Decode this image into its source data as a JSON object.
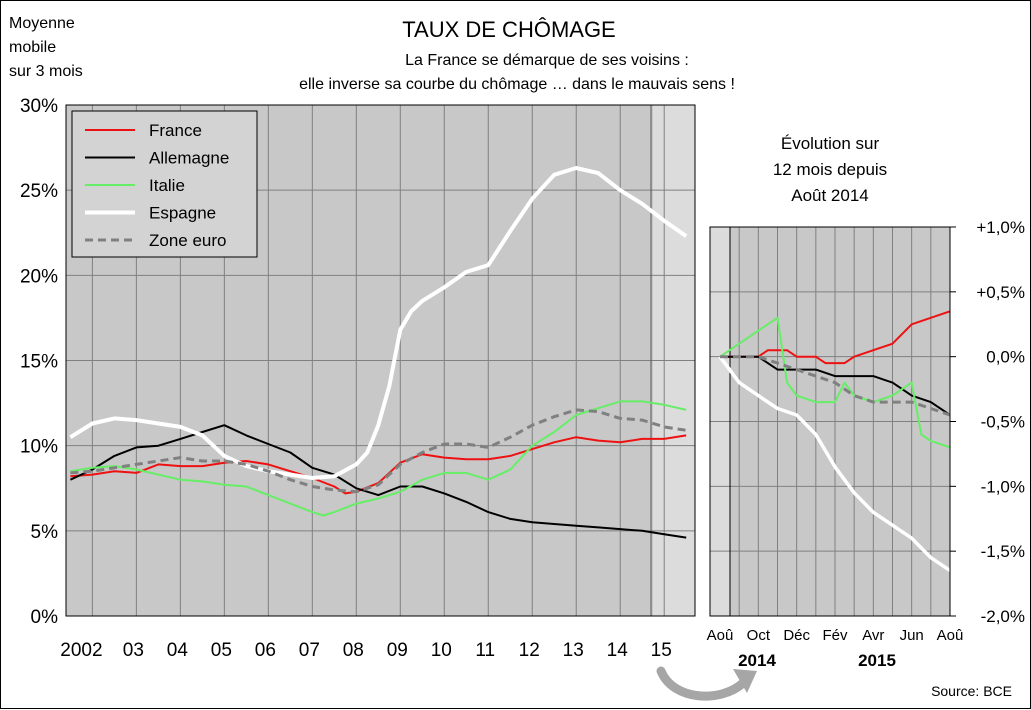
{
  "header": {
    "left_note": [
      "Moyenne",
      "mobile",
      "sur 3 mois"
    ],
    "title": "TAUX DE CHÔMAGE",
    "subtitle": [
      "La France se démarque de ses voisins :",
      "elle inverse sa courbe du chômage … dans le mauvais sens !"
    ]
  },
  "source": "Source: BCE",
  "colors": {
    "France": "#ee1111",
    "Allemagne": "#000000",
    "Italie": "#66ee66",
    "Espagne": "#ffffff",
    "Zone euro": "#808080",
    "plot_bg": "#c8c8c8",
    "plot_bg_highlight": "#dcdcdc",
    "grid": "#808080"
  },
  "chart_data": [
    {
      "type": "line",
      "y_unit": "percent",
      "ylim": [
        0,
        30
      ],
      "y_ticks": [
        "0%",
        "5%",
        "10%",
        "15%",
        "20%",
        "25%",
        "30%"
      ],
      "x_range": [
        2001.4,
        2015.7
      ],
      "x_ticks": [
        "2002",
        "03",
        "04",
        "05",
        "06",
        "07",
        "08",
        "09",
        "10",
        "11",
        "12",
        "13",
        "14",
        "15"
      ],
      "grid": true,
      "legend_position": "top-left",
      "series": [
        {
          "name": "France",
          "color": "#ee1111",
          "dash": false,
          "points": [
            [
              2001.5,
              8.2
            ],
            [
              2002,
              8.3
            ],
            [
              2002.5,
              8.5
            ],
            [
              2003,
              8.4
            ],
            [
              2003.5,
              8.9
            ],
            [
              2004,
              8.8
            ],
            [
              2004.5,
              8.8
            ],
            [
              2005,
              9.0
            ],
            [
              2005.5,
              9.1
            ],
            [
              2006,
              8.9
            ],
            [
              2006.5,
              8.5
            ],
            [
              2007,
              8.1
            ],
            [
              2007.5,
              7.6
            ],
            [
              2007.75,
              7.2
            ],
            [
              2008,
              7.3
            ],
            [
              2008.5,
              7.8
            ],
            [
              2009,
              9.0
            ],
            [
              2009.5,
              9.5
            ],
            [
              2010,
              9.3
            ],
            [
              2010.5,
              9.2
            ],
            [
              2011,
              9.2
            ],
            [
              2011.5,
              9.4
            ],
            [
              2012,
              9.8
            ],
            [
              2012.5,
              10.2
            ],
            [
              2013,
              10.5
            ],
            [
              2013.5,
              10.3
            ],
            [
              2014,
              10.2
            ],
            [
              2014.5,
              10.4
            ],
            [
              2015,
              10.4
            ],
            [
              2015.5,
              10.6
            ]
          ]
        },
        {
          "name": "Allemagne",
          "color": "#000000",
          "dash": false,
          "points": [
            [
              2001.5,
              8.0
            ],
            [
              2002,
              8.6
            ],
            [
              2002.5,
              9.4
            ],
            [
              2003,
              9.9
            ],
            [
              2003.5,
              10.0
            ],
            [
              2004,
              10.4
            ],
            [
              2004.5,
              10.8
            ],
            [
              2005,
              11.2
            ],
            [
              2005.5,
              10.6
            ],
            [
              2006,
              10.1
            ],
            [
              2006.5,
              9.6
            ],
            [
              2007,
              8.7
            ],
            [
              2007.5,
              8.3
            ],
            [
              2008,
              7.5
            ],
            [
              2008.5,
              7.1
            ],
            [
              2009,
              7.6
            ],
            [
              2009.5,
              7.6
            ],
            [
              2010,
              7.2
            ],
            [
              2010.5,
              6.7
            ],
            [
              2011,
              6.1
            ],
            [
              2011.5,
              5.7
            ],
            [
              2012,
              5.5
            ],
            [
              2012.5,
              5.4
            ],
            [
              2013,
              5.3
            ],
            [
              2013.5,
              5.2
            ],
            [
              2014,
              5.1
            ],
            [
              2014.5,
              5.0
            ],
            [
              2015,
              4.8
            ],
            [
              2015.5,
              4.6
            ]
          ]
        },
        {
          "name": "Italie",
          "color": "#66ee66",
          "dash": false,
          "points": [
            [
              2001.5,
              8.5
            ],
            [
              2002,
              8.7
            ],
            [
              2002.5,
              8.8
            ],
            [
              2003,
              8.6
            ],
            [
              2003.5,
              8.3
            ],
            [
              2004,
              8.0
            ],
            [
              2004.5,
              7.9
            ],
            [
              2005,
              7.7
            ],
            [
              2005.5,
              7.6
            ],
            [
              2006,
              7.1
            ],
            [
              2006.5,
              6.6
            ],
            [
              2007,
              6.1
            ],
            [
              2007.25,
              5.9
            ],
            [
              2007.5,
              6.1
            ],
            [
              2008,
              6.6
            ],
            [
              2008.5,
              6.9
            ],
            [
              2009,
              7.3
            ],
            [
              2009.5,
              8.0
            ],
            [
              2010,
              8.4
            ],
            [
              2010.5,
              8.4
            ],
            [
              2011,
              8.0
            ],
            [
              2011.5,
              8.6
            ],
            [
              2012,
              10.0
            ],
            [
              2012.5,
              10.8
            ],
            [
              2013,
              11.8
            ],
            [
              2013.5,
              12.2
            ],
            [
              2014,
              12.6
            ],
            [
              2014.5,
              12.6
            ],
            [
              2015,
              12.4
            ],
            [
              2015.5,
              12.1
            ]
          ]
        },
        {
          "name": "Espagne",
          "color": "#ffffff",
          "dash": false,
          "points": [
            [
              2001.5,
              10.5
            ],
            [
              2002,
              11.3
            ],
            [
              2002.5,
              11.6
            ],
            [
              2003,
              11.5
            ],
            [
              2003.5,
              11.3
            ],
            [
              2004,
              11.1
            ],
            [
              2004.5,
              10.6
            ],
            [
              2005,
              9.4
            ],
            [
              2005.5,
              8.8
            ],
            [
              2006,
              8.5
            ],
            [
              2006.5,
              8.3
            ],
            [
              2007,
              8.1
            ],
            [
              2007.5,
              8.2
            ],
            [
              2008,
              8.9
            ],
            [
              2008.25,
              9.6
            ],
            [
              2008.5,
              11.2
            ],
            [
              2008.75,
              13.5
            ],
            [
              2009,
              16.8
            ],
            [
              2009.25,
              17.9
            ],
            [
              2009.5,
              18.5
            ],
            [
              2010,
              19.3
            ],
            [
              2010.5,
              20.2
            ],
            [
              2011,
              20.6
            ],
            [
              2011.5,
              22.6
            ],
            [
              2012,
              24.5
            ],
            [
              2012.5,
              25.9
            ],
            [
              2013,
              26.3
            ],
            [
              2013.5,
              26.0
            ],
            [
              2014,
              25.0
            ],
            [
              2014.5,
              24.2
            ],
            [
              2015,
              23.2
            ],
            [
              2015.5,
              22.3
            ]
          ]
        },
        {
          "name": "Zone euro",
          "color": "#808080",
          "dash": true,
          "points": [
            [
              2001.5,
              8.4
            ],
            [
              2002,
              8.5
            ],
            [
              2002.5,
              8.7
            ],
            [
              2003,
              8.9
            ],
            [
              2003.5,
              9.1
            ],
            [
              2004,
              9.3
            ],
            [
              2004.5,
              9.1
            ],
            [
              2005,
              9.1
            ],
            [
              2005.5,
              8.9
            ],
            [
              2006,
              8.5
            ],
            [
              2006.5,
              8.0
            ],
            [
              2007,
              7.6
            ],
            [
              2007.5,
              7.4
            ],
            [
              2008,
              7.3
            ],
            [
              2008.5,
              7.7
            ],
            [
              2009,
              8.9
            ],
            [
              2009.5,
              9.6
            ],
            [
              2010,
              10.1
            ],
            [
              2010.5,
              10.1
            ],
            [
              2011,
              9.9
            ],
            [
              2011.5,
              10.5
            ],
            [
              2012,
              11.2
            ],
            [
              2012.5,
              11.7
            ],
            [
              2013,
              12.1
            ],
            [
              2013.5,
              12.0
            ],
            [
              2014,
              11.6
            ],
            [
              2014.5,
              11.5
            ],
            [
              2015,
              11.1
            ],
            [
              2015.5,
              10.9
            ]
          ]
        }
      ]
    },
    {
      "type": "line",
      "title": [
        "Évolution sur",
        "12 mois depuis",
        "Août 2014"
      ],
      "y_unit": "percentage points",
      "ylim": [
        -2.0,
        1.0
      ],
      "y_ticks": [
        "+1,0%",
        "+0,5%",
        "0,0%",
        "-0,5%",
        "-1,0%",
        "-1,5%",
        "-2,0%"
      ],
      "x_range": [
        0,
        12
      ],
      "x_ticks": [
        "Aoû",
        "Oct",
        "Déc",
        "Fév",
        "Avr",
        "Jun",
        "Aoû"
      ],
      "year_labels": [
        "2014",
        "2015"
      ],
      "grid": true,
      "series": [
        {
          "name": "France",
          "color": "#ee1111",
          "dash": false,
          "points": [
            [
              0,
              0
            ],
            [
              1,
              0
            ],
            [
              2,
              0
            ],
            [
              2.5,
              0.05
            ],
            [
              3,
              0.05
            ],
            [
              3.5,
              0.05
            ],
            [
              4,
              0.0
            ],
            [
              5,
              0.0
            ],
            [
              5.5,
              -0.05
            ],
            [
              6,
              -0.05
            ],
            [
              6.5,
              -0.05
            ],
            [
              7,
              0.0
            ],
            [
              8,
              0.05
            ],
            [
              9,
              0.1
            ],
            [
              10,
              0.25
            ],
            [
              11,
              0.3
            ],
            [
              12,
              0.35
            ]
          ]
        },
        {
          "name": "Allemagne",
          "color": "#000000",
          "dash": false,
          "points": [
            [
              0,
              0
            ],
            [
              1,
              0
            ],
            [
              2,
              0
            ],
            [
              3,
              -0.1
            ],
            [
              4,
              -0.1
            ],
            [
              5,
              -0.1
            ],
            [
              6,
              -0.15
            ],
            [
              7,
              -0.15
            ],
            [
              8,
              -0.15
            ],
            [
              9,
              -0.2
            ],
            [
              10,
              -0.3
            ],
            [
              11,
              -0.35
            ],
            [
              12,
              -0.45
            ]
          ]
        },
        {
          "name": "Italie",
          "color": "#66ee66",
          "dash": false,
          "points": [
            [
              0,
              0
            ],
            [
              1,
              0.1
            ],
            [
              2,
              0.2
            ],
            [
              3,
              0.3
            ],
            [
              3.5,
              -0.2
            ],
            [
              4,
              -0.3
            ],
            [
              5,
              -0.35
            ],
            [
              6,
              -0.35
            ],
            [
              6.5,
              -0.2
            ],
            [
              7,
              -0.3
            ],
            [
              8,
              -0.35
            ],
            [
              9,
              -0.3
            ],
            [
              10,
              -0.2
            ],
            [
              10.5,
              -0.6
            ],
            [
              11,
              -0.65
            ],
            [
              12,
              -0.7
            ]
          ]
        },
        {
          "name": "Espagne",
          "color": "#ffffff",
          "dash": false,
          "points": [
            [
              0,
              0
            ],
            [
              1,
              -0.2
            ],
            [
              2,
              -0.3
            ],
            [
              3,
              -0.4
            ],
            [
              4,
              -0.45
            ],
            [
              5,
              -0.6
            ],
            [
              6,
              -0.85
            ],
            [
              7,
              -1.05
            ],
            [
              8,
              -1.2
            ],
            [
              9,
              -1.3
            ],
            [
              10,
              -1.4
            ],
            [
              11,
              -1.55
            ],
            [
              12,
              -1.65
            ]
          ]
        },
        {
          "name": "Zone euro",
          "color": "#808080",
          "dash": true,
          "points": [
            [
              0,
              0
            ],
            [
              1,
              0
            ],
            [
              2,
              0
            ],
            [
              3,
              -0.05
            ],
            [
              4,
              -0.1
            ],
            [
              5,
              -0.15
            ],
            [
              6,
              -0.2
            ],
            [
              7,
              -0.3
            ],
            [
              8,
              -0.35
            ],
            [
              9,
              -0.35
            ],
            [
              10,
              -0.35
            ],
            [
              11,
              -0.4
            ],
            [
              12,
              -0.45
            ]
          ]
        }
      ]
    }
  ]
}
